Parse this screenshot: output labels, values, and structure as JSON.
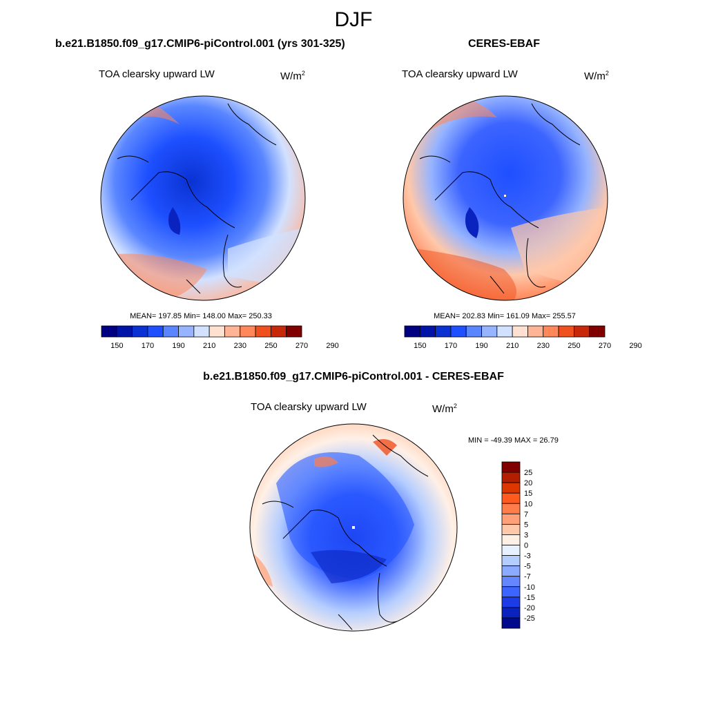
{
  "figure": {
    "season_title": "DJF",
    "panels": {
      "model": {
        "title": "b.e21.B1850.f09_g17.CMIP6-piControl.001 (yrs 301-325)",
        "variable": "TOA clearsky upward LW",
        "units_base": "W/m",
        "units_exp": "2",
        "stats": "MEAN= 197.85  Min= 148.00  Max= 250.33"
      },
      "obs": {
        "title": "CERES-EBAF",
        "variable": "TOA clearsky upward LW",
        "units_base": "W/m",
        "units_exp": "2",
        "stats": "MEAN= 202.83  Min= 161.09  Max= 255.57"
      },
      "diff": {
        "title": "b.e21.B1850.f09_g17.CMIP6-piControl.001 - CERES-EBAF",
        "variable": "TOA clearsky upward LW",
        "units_base": "W/m",
        "units_exp": "2",
        "stats": "MIN = -49.39 MAX =  26.79"
      }
    },
    "abs_colorbar": {
      "labels": [
        "150",
        "170",
        "190",
        "210",
        "230",
        "250",
        "270",
        "290"
      ],
      "colors": [
        "#000080",
        "#0014a8",
        "#0a32d2",
        "#1e50ff",
        "#5a87ff",
        "#96b4ff",
        "#d2e1ff",
        "#ffe1d2",
        "#ffb496",
        "#ff875a",
        "#f0501e",
        "#c8280a",
        "#800000"
      ]
    },
    "diff_colorbar": {
      "labels": [
        "25",
        "20",
        "15",
        "10",
        "7",
        "5",
        "3",
        "0",
        "-3",
        "-5",
        "-7",
        "-10",
        "-15",
        "-20",
        "-25"
      ],
      "colors": [
        "#800000",
        "#b41e00",
        "#dc3700",
        "#ff5a1e",
        "#ff7d4b",
        "#ffa078",
        "#ffc8aa",
        "#fff0e6",
        "#e6f0ff",
        "#b4cdff",
        "#8caaff",
        "#6487ff",
        "#3c64ff",
        "#1e3ce6",
        "#0a23be",
        "#000a8c"
      ]
    }
  }
}
